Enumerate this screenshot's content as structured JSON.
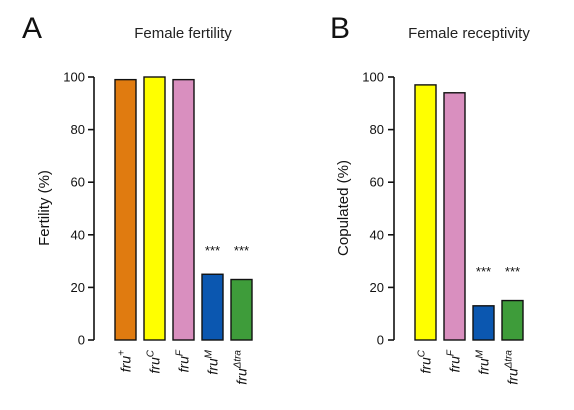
{
  "chart_data": [
    {
      "type": "bar",
      "panel_label": "A",
      "title": "Female fertility",
      "ylabel": "Fertility (%)",
      "xlabel": "",
      "ylim": [
        0,
        100
      ],
      "yticks": [
        0,
        20,
        40,
        60,
        80,
        100
      ],
      "grid": false,
      "legend": "none",
      "categories": [
        {
          "base": "fru",
          "sup": "+"
        },
        {
          "base": "fru",
          "sup": "C"
        },
        {
          "base": "fru",
          "sup": "F"
        },
        {
          "base": "fru",
          "sup": "M"
        },
        {
          "base": "fru",
          "sup": "Δtra"
        }
      ],
      "values": [
        99,
        100,
        99,
        25,
        23
      ],
      "colors": [
        "#e07b10",
        "#ffff00",
        "#d98fbf",
        "#0b57b0",
        "#3e9c3a"
      ],
      "annotations": [
        "",
        "",
        "",
        "***",
        "***"
      ]
    },
    {
      "type": "bar",
      "panel_label": "B",
      "title": "Female receptivity",
      "ylabel": "Copulated (%)",
      "xlabel": "",
      "ylim": [
        0,
        100
      ],
      "yticks": [
        0,
        20,
        40,
        60,
        80,
        100
      ],
      "grid": false,
      "legend": "none",
      "categories": [
        {
          "base": "fru",
          "sup": "C"
        },
        {
          "base": "fru",
          "sup": "F"
        },
        {
          "base": "fru",
          "sup": "M"
        },
        {
          "base": "fru",
          "sup": "Δtra"
        }
      ],
      "values": [
        97,
        94,
        13,
        15
      ],
      "colors": [
        "#ffff00",
        "#d98fbf",
        "#0b57b0",
        "#3e9c3a"
      ],
      "annotations": [
        "",
        "",
        "***",
        "***"
      ]
    }
  ]
}
